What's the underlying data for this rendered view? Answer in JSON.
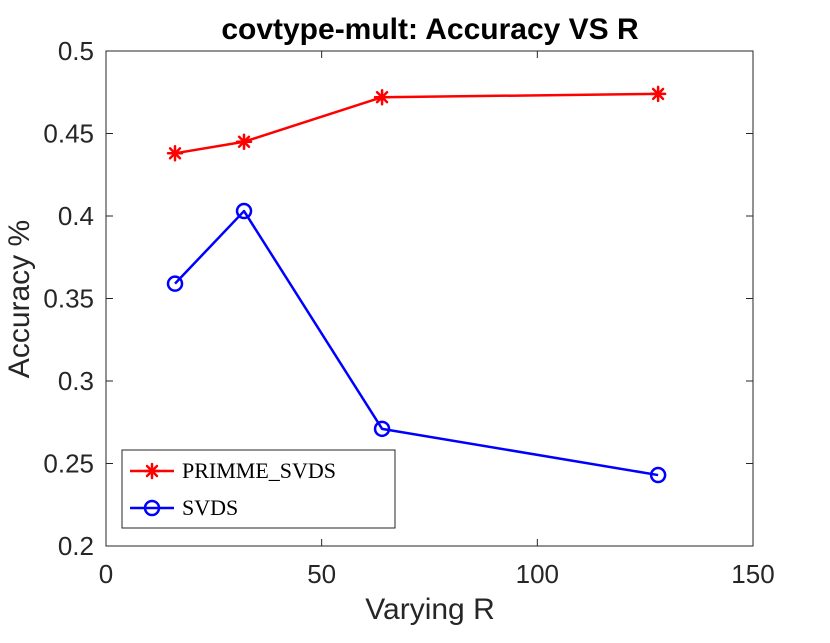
{
  "chart_data": {
    "type": "line",
    "title": "covtype-mult: Accuracy VS R",
    "xlabel": "Varying R",
    "ylabel": "Accuracy %",
    "xlim": [
      0,
      150
    ],
    "ylim": [
      0.2,
      0.5
    ],
    "x_ticks": [
      0,
      50,
      100,
      150
    ],
    "x_tick_labels": [
      "0",
      "50",
      "100",
      "150"
    ],
    "y_ticks": [
      0.2,
      0.25,
      0.3,
      0.35,
      0.4,
      0.45,
      0.5
    ],
    "y_tick_labels": [
      "0.2",
      "0.25",
      "0.3",
      "0.35",
      "0.4",
      "0.45",
      "0.5"
    ],
    "grid": false,
    "legend_position": "bottom-left",
    "x": [
      16,
      32,
      64,
      128
    ],
    "series": [
      {
        "name": "PRIMME_SVDS",
        "values": [
          0.438,
          0.445,
          0.472,
          0.474
        ],
        "color": "#ff0000",
        "marker": "asterisk"
      },
      {
        "name": "SVDS",
        "values": [
          0.359,
          0.403,
          0.271,
          0.243
        ],
        "color": "#0000ff",
        "marker": "circle"
      }
    ]
  }
}
